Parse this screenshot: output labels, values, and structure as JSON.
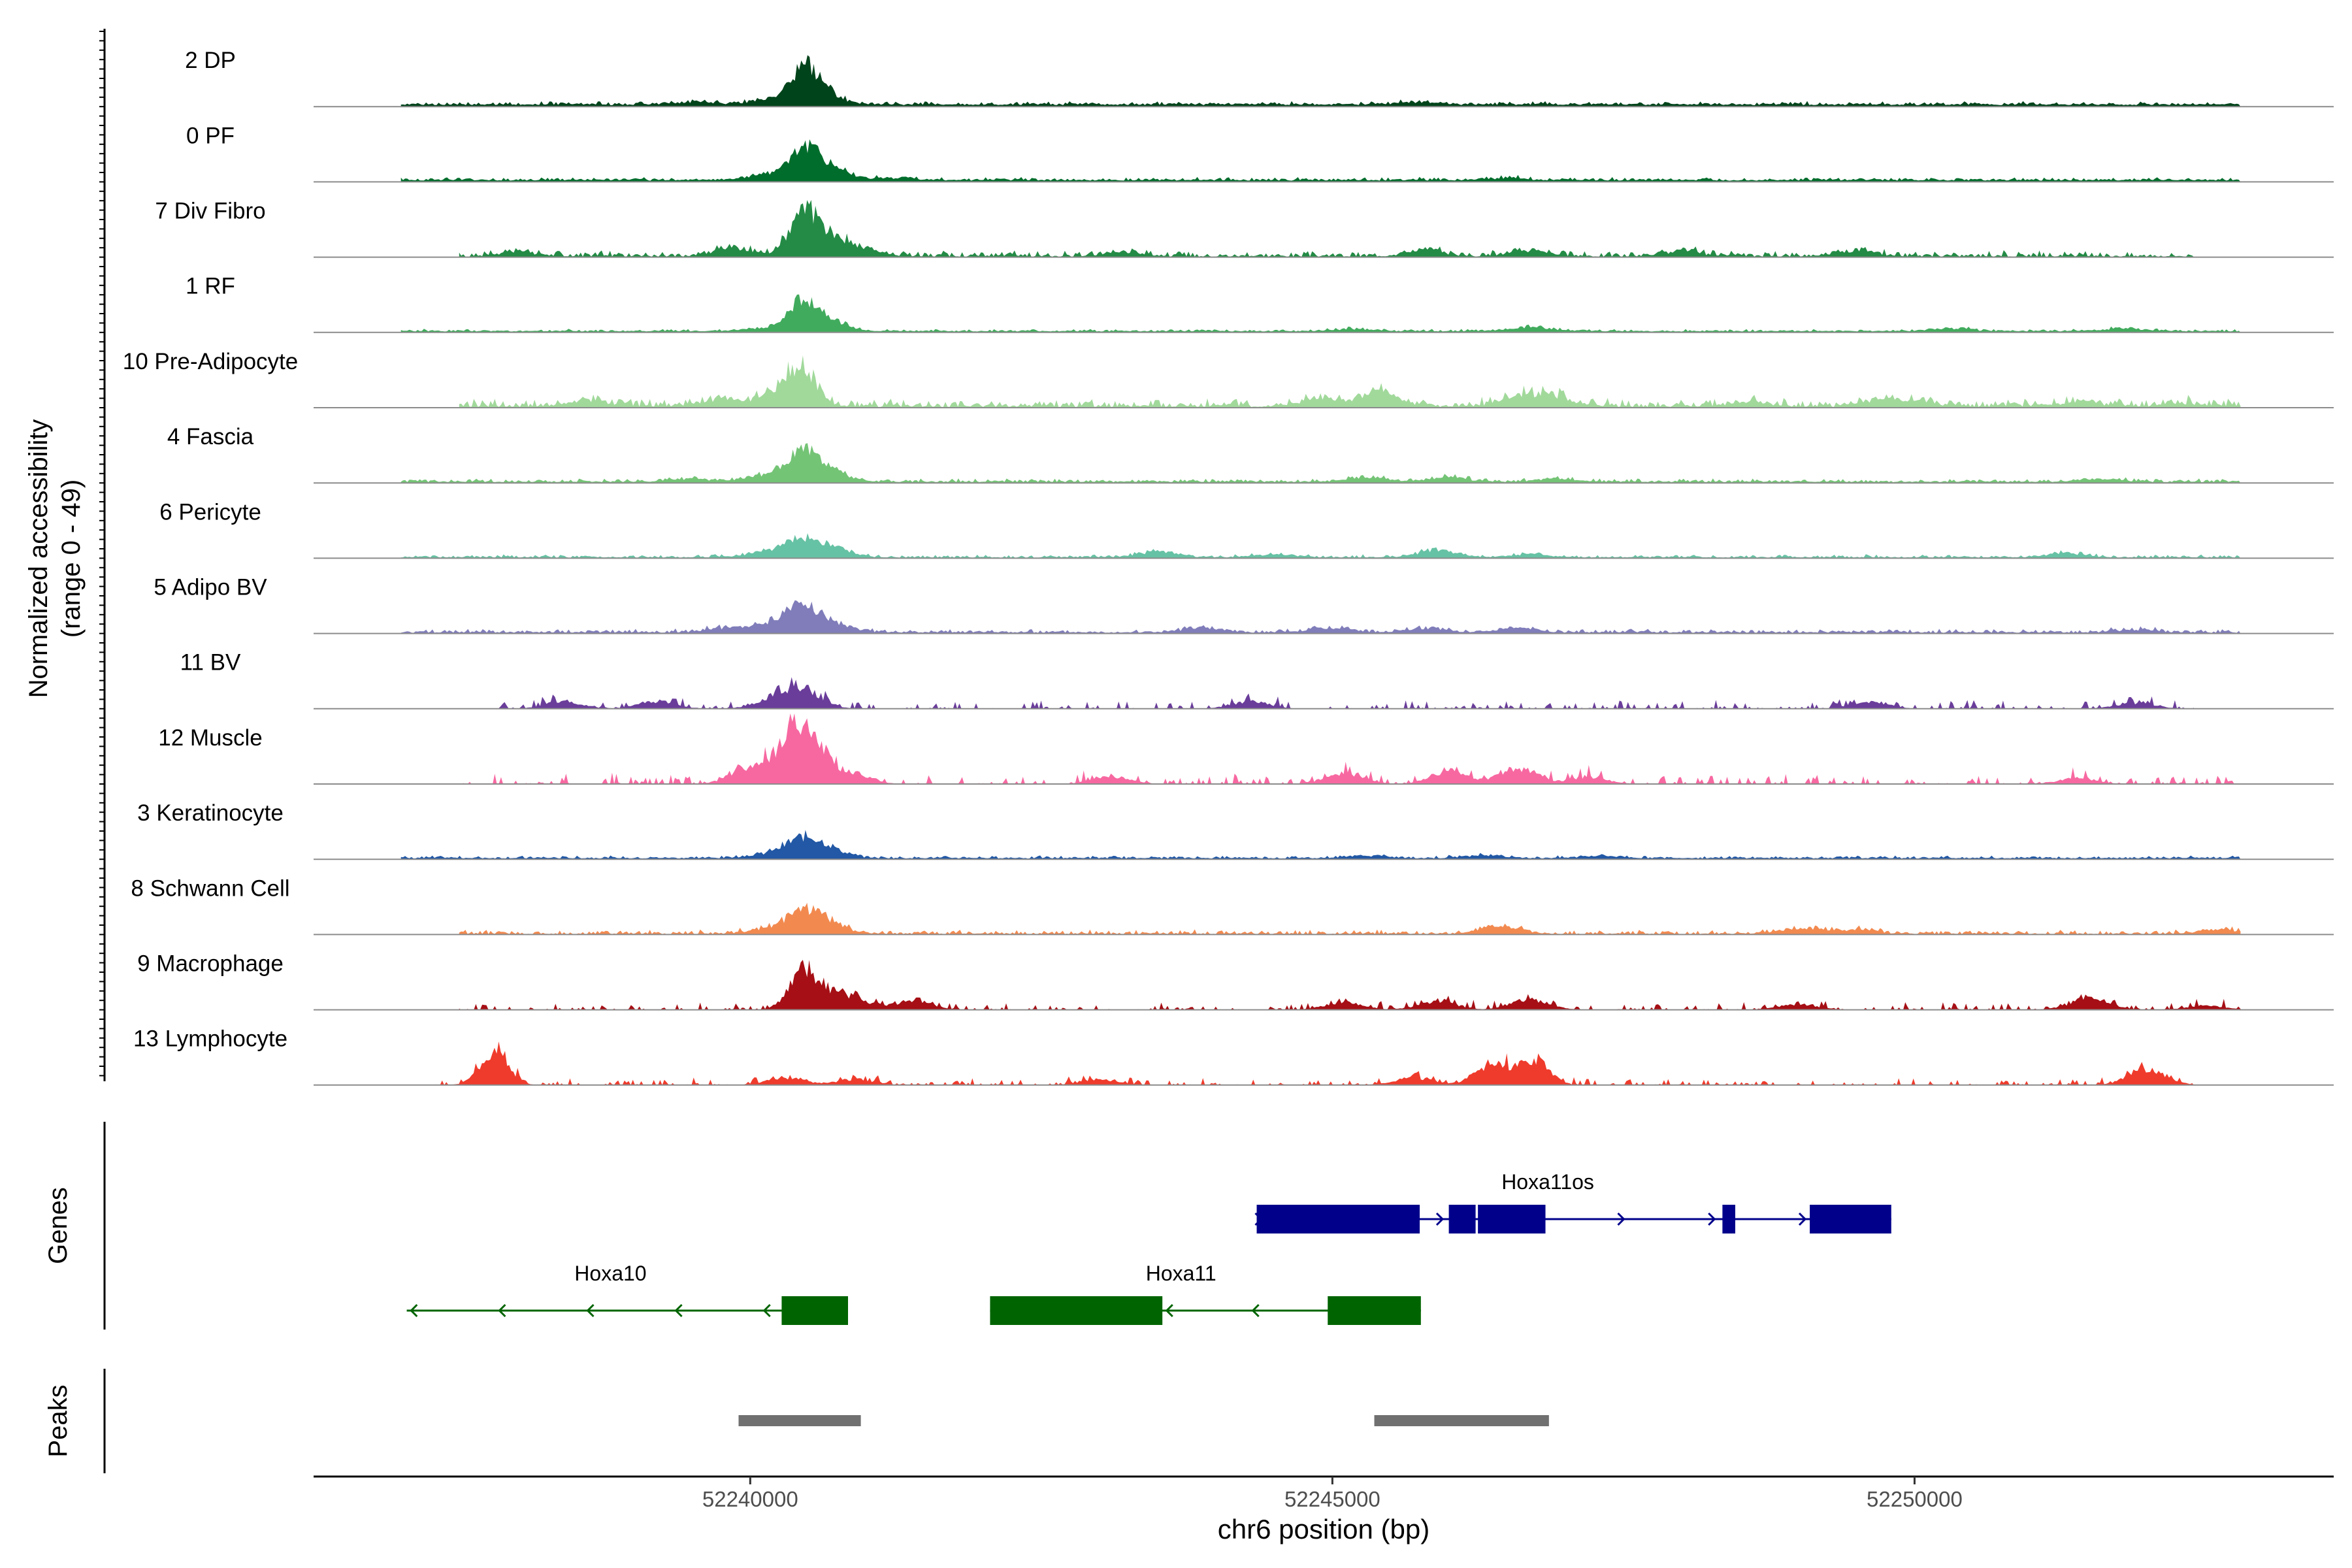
{
  "chart_data": {
    "type": "area",
    "chromosome": "chr6",
    "xlabel": "chr6 position (bp)",
    "xlim": [
      52236250,
      52253600
    ],
    "x_ticks": [
      {
        "value": 52240000,
        "label": "52240000"
      },
      {
        "value": 52245000,
        "label": "52245000"
      },
      {
        "value": 52250000,
        "label": "52250000"
      }
    ],
    "track_panel": {
      "ylabel_line1": "Normalized accessibility",
      "ylabel_line2": "(range 0 - 49)",
      "ylim": [
        0,
        49
      ]
    },
    "tracks": [
      {
        "label": "2 DP",
        "color": "#00441b",
        "start": 52237000,
        "end": 52252800,
        "base": 1.3,
        "noise": 0.9,
        "peaks": [
          [
            52240450,
            20
          ],
          [
            52240600,
            9
          ],
          [
            52240150,
            3
          ],
          [
            52239500,
            2
          ],
          [
            52245700,
            1.5
          ]
        ]
      },
      {
        "label": "0 PF",
        "color": "#006d2c",
        "start": 52237000,
        "end": 52252800,
        "base": 1.1,
        "noise": 0.8,
        "peaks": [
          [
            52240450,
            18
          ],
          [
            52240650,
            10
          ],
          [
            52240150,
            4
          ],
          [
            52241200,
            1.5
          ],
          [
            52246500,
            1.5
          ]
        ]
      },
      {
        "label": "7 Div Fibro",
        "color": "#238b45",
        "start": 52237500,
        "end": 52252400,
        "base": 0.4,
        "noise": 1.6,
        "peaks": [
          [
            52240450,
            26
          ],
          [
            52240650,
            12
          ],
          [
            52239850,
            5
          ],
          [
            52240950,
            5
          ],
          [
            52238000,
            3
          ],
          [
            52243200,
            3
          ],
          [
            52245800,
            4
          ],
          [
            52246700,
            4
          ],
          [
            52249500,
            4
          ],
          [
            52248000,
            3
          ]
        ]
      },
      {
        "label": "1 RF",
        "color": "#41ab5d",
        "start": 52237000,
        "end": 52252800,
        "base": 0.8,
        "noise": 0.6,
        "peaks": [
          [
            52240450,
            18
          ],
          [
            52240650,
            8
          ],
          [
            52240100,
            2
          ],
          [
            52246700,
            3
          ],
          [
            52245200,
            1.5
          ],
          [
            52250300,
            2
          ],
          [
            52251800,
            2
          ]
        ]
      },
      {
        "label": "10 Pre-Adipocyte",
        "color": "#a1d99b",
        "start": 52237500,
        "end": 52252800,
        "base": 0.6,
        "noise": 2.2,
        "peaks": [
          [
            52240450,
            22
          ],
          [
            52240250,
            10
          ],
          [
            52239750,
            5
          ],
          [
            52238600,
            4
          ],
          [
            52245400,
            9
          ],
          [
            52244900,
            6
          ],
          [
            52246600,
            7
          ],
          [
            52246900,
            6
          ],
          [
            52248600,
            3
          ],
          [
            52249700,
            4
          ],
          [
            52250000,
            3
          ],
          [
            52251400,
            3
          ],
          [
            52252300,
            2
          ]
        ]
      },
      {
        "label": "4 Fascia",
        "color": "#74c476",
        "start": 52237000,
        "end": 52252800,
        "base": 0.7,
        "noise": 0.9,
        "peaks": [
          [
            52240450,
            18
          ],
          [
            52240650,
            8
          ],
          [
            52240150,
            5
          ],
          [
            52239500,
            2
          ],
          [
            52245300,
            3
          ],
          [
            52246000,
            3
          ],
          [
            52246900,
            2
          ],
          [
            52251600,
            2
          ]
        ]
      },
      {
        "label": "6 Pericyte",
        "color": "#66c2a4",
        "start": 52237000,
        "end": 52252800,
        "base": 0.5,
        "noise": 0.8,
        "peaks": [
          [
            52240450,
            12
          ],
          [
            52240700,
            5
          ],
          [
            52240100,
            3
          ],
          [
            52245900,
            5
          ],
          [
            52243500,
            4
          ],
          [
            52244500,
            2
          ],
          [
            52246700,
            2
          ],
          [
            52251300,
            3
          ]
        ]
      },
      {
        "label": "5 Adipo BV",
        "color": "#807dba",
        "start": 52237000,
        "end": 52252800,
        "base": 0.6,
        "noise": 1.0,
        "peaks": [
          [
            52240450,
            18
          ],
          [
            52240200,
            7
          ],
          [
            52240700,
            6
          ],
          [
            52239800,
            3
          ],
          [
            52243900,
            3
          ],
          [
            52245000,
            3
          ],
          [
            52245800,
            3
          ],
          [
            52246600,
            3
          ],
          [
            52251900,
            2
          ]
        ]
      },
      {
        "label": "11 BV",
        "color": "#6a3d9a",
        "start": 52237800,
        "end": 52252400,
        "base": 0.0,
        "noise": 2.6,
        "peaks": [
          [
            52240450,
            13
          ],
          [
            52240200,
            6
          ],
          [
            52239200,
            5
          ],
          [
            52238400,
            5
          ],
          [
            52244300,
            5
          ],
          [
            52249600,
            5
          ],
          [
            52251900,
            4
          ]
        ]
      },
      {
        "label": "12 Muscle",
        "color": "#f768a1",
        "start": 52237500,
        "end": 52252800,
        "base": 0.0,
        "noise": 3.0,
        "peaks": [
          [
            52240350,
            34
          ],
          [
            52240550,
            25
          ],
          [
            52240000,
            12
          ],
          [
            52240850,
            8
          ],
          [
            52243100,
            5
          ],
          [
            52245100,
            7
          ],
          [
            52246000,
            8
          ],
          [
            52246600,
            11
          ],
          [
            52247200,
            5
          ],
          [
            52251400,
            4
          ]
        ]
      },
      {
        "label": "3 Keratinocyte",
        "color": "#2258a5",
        "start": 52237000,
        "end": 52252800,
        "base": 0.7,
        "noise": 0.7,
        "peaks": [
          [
            52240450,
            12
          ],
          [
            52240650,
            5
          ],
          [
            52240100,
            2
          ],
          [
            52246300,
            2
          ],
          [
            52245300,
            1.5
          ],
          [
            52247300,
            1.5
          ]
        ]
      },
      {
        "label": "8 Schwann Cell",
        "color": "#f28a50",
        "start": 52237500,
        "end": 52252800,
        "base": 0.3,
        "noise": 1.2,
        "peaks": [
          [
            52240450,
            14
          ],
          [
            52240650,
            6
          ],
          [
            52240100,
            2
          ],
          [
            52246450,
            6
          ],
          [
            52249000,
            4
          ],
          [
            52249500,
            3
          ],
          [
            52252600,
            3
          ]
        ]
      },
      {
        "label": "9 Macrophage",
        "color": "#a50f15",
        "start": 52237500,
        "end": 52252800,
        "base": 0.0,
        "noise": 2.2,
        "peaks": [
          [
            52240450,
            24
          ],
          [
            52240650,
            9
          ],
          [
            52240900,
            6
          ],
          [
            52241400,
            6
          ],
          [
            52245100,
            5
          ],
          [
            52245900,
            6
          ],
          [
            52246700,
            7
          ],
          [
            52249000,
            4
          ],
          [
            52251500,
            8
          ],
          [
            52252500,
            3
          ]
        ]
      },
      {
        "label": "13 Lymphocyte",
        "color": "#ef3b2c",
        "start": 52237300,
        "end": 52252400,
        "base": 0.0,
        "noise": 2.0,
        "peaks": [
          [
            52237800,
            22
          ],
          [
            52246400,
            14
          ],
          [
            52246750,
            17
          ],
          [
            52245700,
            5
          ],
          [
            52240300,
            5
          ],
          [
            52240900,
            4
          ],
          [
            52243000,
            4
          ],
          [
            52252000,
            11
          ]
        ]
      }
    ],
    "genes_panel": {
      "ylabel": "Genes",
      "genes": [
        {
          "name": "Hoxa11os",
          "strand": "+",
          "color": "#00008b",
          "row": 0,
          "start": 52244350,
          "end": 52249800,
          "exons": [
            [
              52244350,
              52245750
            ],
            [
              52246000,
              52246230
            ],
            [
              52246250,
              52246830
            ],
            [
              52248350,
              52248460
            ],
            [
              52249100,
              52249800
            ]
          ]
        },
        {
          "name": "Hoxa10",
          "strand": "-",
          "color": "#006400",
          "row": 1,
          "start": 52237050,
          "end": 52240840,
          "exons": [
            [
              52240270,
              52240840
            ]
          ]
        },
        {
          "name": "Hoxa11",
          "strand": "-",
          "color": "#006400",
          "row": 1,
          "start": 52242060,
          "end": 52245760,
          "exons": [
            [
              52242060,
              52243540
            ],
            [
              52244960,
              52245760
            ]
          ]
        }
      ]
    },
    "peaks_panel": {
      "ylabel": "Peaks",
      "color": "#707070",
      "peaks": [
        [
          52239900,
          52240950
        ],
        [
          52245360,
          52246860
        ]
      ]
    }
  }
}
